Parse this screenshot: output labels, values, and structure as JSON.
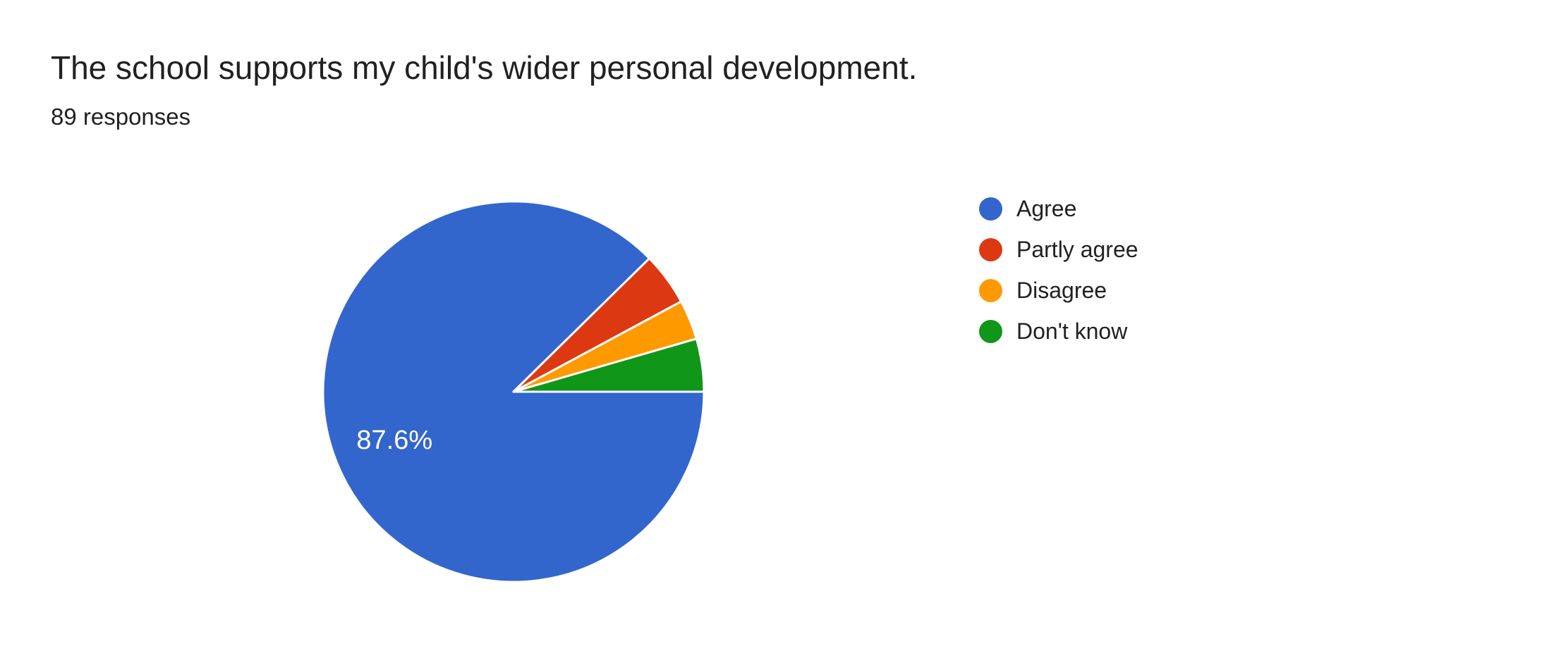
{
  "header": {
    "title": "The school supports my child's wider personal development.",
    "subtitle": "89 responses"
  },
  "chart_data": {
    "type": "pie",
    "title": "The school supports my child's wider personal development.",
    "subtitle": "89 responses",
    "total_responses": 89,
    "start_angle_deg": 0,
    "direction": "clockwise",
    "legend_position": "right",
    "slice_border_color": "#ffffff",
    "pct_label_color": "#ffffff",
    "background_color": "#ffffff",
    "text_color": "#212121",
    "slices": [
      {
        "label": "Agree",
        "value": 78,
        "pct": 87.6,
        "pct_label": "87.6%",
        "color": "#3366CC"
      },
      {
        "label": "Partly agree",
        "value": 4,
        "pct": 4.5,
        "pct_label": "",
        "color": "#DC3912"
      },
      {
        "label": "Disagree",
        "value": 3,
        "pct": 3.4,
        "pct_label": "",
        "color": "#FF9900"
      },
      {
        "label": "Don't know",
        "value": 4,
        "pct": 4.5,
        "pct_label": "",
        "color": "#109618"
      }
    ]
  }
}
